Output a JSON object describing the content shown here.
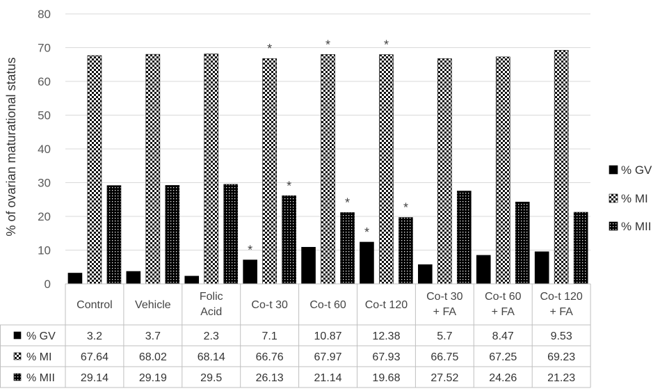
{
  "chart_data": {
    "type": "bar",
    "ylabel": "% of ovarian maturational status",
    "ylim": [
      0,
      80
    ],
    "yticks": [
      0,
      10,
      20,
      30,
      40,
      50,
      60,
      70,
      80
    ],
    "grid": true,
    "legend_position": "right",
    "categories": [
      [
        "Control"
      ],
      [
        "Vehicle"
      ],
      [
        "Folic",
        "Acid"
      ],
      [
        "Co-t 30"
      ],
      [
        "Co-t 60"
      ],
      [
        "Co-t 120"
      ],
      [
        "Co-t 30",
        "+ FA"
      ],
      [
        "Co-t 60",
        "+ FA"
      ],
      [
        "Co-t 120",
        "+ FA"
      ]
    ],
    "series": [
      {
        "name": "% GV",
        "pattern": "solid",
        "values": [
          3.2,
          3.7,
          2.3,
          7.1,
          10.87,
          12.38,
          5.7,
          8.47,
          9.53
        ],
        "labels": [
          "3.2",
          "3.7",
          "2.3",
          "7.1",
          "10.87",
          "12.38",
          "5.7",
          "8.47",
          "9.53"
        ],
        "significant": [
          false,
          false,
          false,
          true,
          false,
          true,
          false,
          false,
          false
        ]
      },
      {
        "name": "% MI",
        "pattern": "checker",
        "values": [
          67.64,
          68.02,
          68.14,
          66.76,
          67.97,
          67.93,
          66.75,
          67.25,
          69.23
        ],
        "labels": [
          "67.64",
          "68.02",
          "68.14",
          "66.76",
          "67.97",
          "67.93",
          "66.75",
          "67.25",
          "69.23"
        ],
        "significant": [
          false,
          false,
          false,
          true,
          true,
          true,
          false,
          false,
          false
        ]
      },
      {
        "name": "% MII",
        "pattern": "dots",
        "values": [
          29.14,
          29.19,
          29.5,
          26.13,
          21.14,
          19.68,
          27.52,
          24.26,
          21.23
        ],
        "labels": [
          "29.14",
          "29.19",
          "29.5",
          "26.13",
          "21.14",
          "19.68",
          "27.52",
          "24.26",
          "21.23"
        ],
        "significant": [
          false,
          false,
          false,
          true,
          true,
          true,
          false,
          false,
          false
        ]
      }
    ],
    "significance_marker": "*",
    "data_table": true
  }
}
